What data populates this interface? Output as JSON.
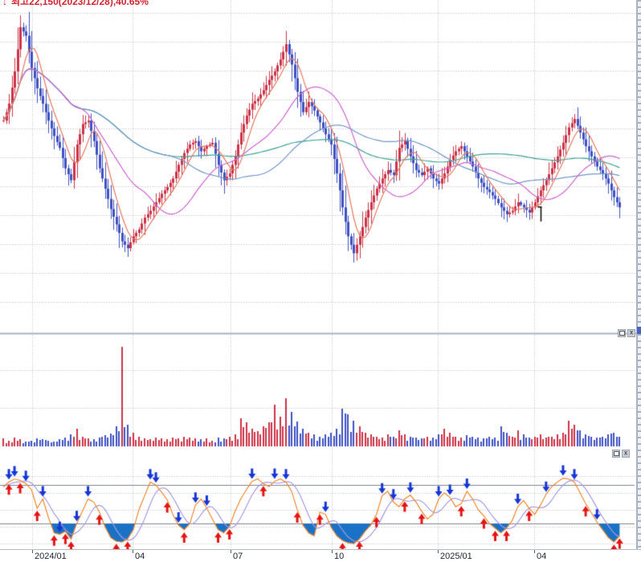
{
  "annotation_high": {
    "arrow_icon": "arrow-down",
    "arrow_glyph": "↓",
    "text": "최고22,150(2023/12/28),40.65%",
    "color": "#d22332"
  },
  "window_controls": {
    "restore_icon": "restore-window-icon",
    "close_icon": "close-icon",
    "close_glyph": "x"
  },
  "x_axis": {
    "labels": [
      "2024/01",
      "04",
      "07",
      "10",
      "2025/01",
      "04"
    ]
  },
  "chart_data": {
    "type": "candlestick",
    "panels": [
      "price-candles-with-moving-averages",
      "volume-bars",
      "oscillator-with-signal-arrows"
    ],
    "title": "최고22,150(2023/12/28),40.65%",
    "x_tick_labels": [
      "2024/01",
      "04",
      "07",
      "10",
      "2025/01",
      "04"
    ],
    "price": {
      "ylim": [
        12800,
        22600
      ],
      "high_marker": {
        "price": 22150,
        "anchor_index": 3,
        "date": "2023/12/28",
        "pct": "40.65%"
      },
      "low_tick_annotation": {
        "anchor_index": 95
      },
      "closes": [
        19050,
        19550,
        20500,
        21800,
        21550,
        20600,
        20000,
        19550,
        19050,
        18600,
        18250,
        17650,
        17300,
        18350,
        18950,
        19050,
        18450,
        17650,
        17050,
        16450,
        16000,
        15500,
        15300,
        15650,
        15850,
        16200,
        16400,
        16650,
        16900,
        17100,
        17350,
        17750,
        18100,
        18350,
        18450,
        18150,
        18300,
        18400,
        17750,
        17300,
        17500,
        18000,
        18700,
        19200,
        19550,
        19700,
        19950,
        20250,
        20500,
        20850,
        21300,
        20700,
        19900,
        19300,
        19600,
        19350,
        19000,
        18650,
        18350,
        17500,
        16500,
        15650,
        15150,
        15650,
        16200,
        16650,
        17050,
        17350,
        17600,
        17450,
        18250,
        18450,
        18000,
        17600,
        17450,
        17650,
        17350,
        17200,
        17500,
        17900,
        18150,
        18300,
        18000,
        17700,
        17350,
        17100,
        16950,
        16750,
        16500,
        16300,
        16400,
        16650,
        16500,
        16350,
        16650,
        17000,
        17300,
        17650,
        18000,
        18400,
        18850,
        19100,
        18700,
        18300,
        18000,
        17700,
        17500,
        17200,
        16800,
        16500
      ]
    },
    "moving_average_windows": {
      "fast": 7,
      "mid": 25,
      "slow": 60,
      "xslow": 120
    },
    "volume": {
      "scale": "relative-0-100",
      "spike_anchor": 21,
      "values": [
        8,
        6,
        9,
        7,
        5,
        6,
        8,
        7,
        6,
        5,
        7,
        9,
        12,
        18,
        10,
        8,
        7,
        9,
        11,
        13,
        20,
        100,
        22,
        14,
        10,
        8,
        7,
        9,
        8,
        7,
        9,
        8,
        10,
        9,
        8,
        7,
        8,
        6,
        9,
        8,
        10,
        12,
        28,
        24,
        18,
        15,
        20,
        24,
        42,
        30,
        48,
        35,
        25,
        18,
        14,
        12,
        10,
        12,
        14,
        18,
        38,
        32,
        26,
        20,
        14,
        12,
        10,
        9,
        12,
        10,
        16,
        12,
        10,
        9,
        8,
        10,
        9,
        12,
        18,
        14,
        10,
        9,
        11,
        10,
        9,
        8,
        10,
        9,
        20,
        14,
        10,
        16,
        12,
        9,
        10,
        12,
        9,
        10,
        12,
        14,
        26,
        22,
        16,
        12,
        10,
        9,
        10,
        12,
        14,
        10
      ]
    },
    "oscillator": {
      "range": [
        0,
        100
      ],
      "upper_band": 80,
      "lower_band": 30,
      "fast": [
        78,
        84,
        88,
        86,
        82,
        74,
        50,
        62,
        38,
        18,
        16,
        20,
        10,
        30,
        46,
        62,
        58,
        45,
        26,
        12,
        7,
        6,
        10,
        22,
        48,
        66,
        84,
        80,
        71,
        61,
        42,
        28,
        22,
        30,
        54,
        62,
        50,
        36,
        22,
        18,
        26,
        46,
        62,
        74,
        85,
        88,
        82,
        78,
        85,
        88,
        84,
        72,
        48,
        28,
        18,
        14,
        45,
        42,
        25,
        14,
        8,
        5,
        4,
        10,
        20,
        28,
        42,
        66,
        72,
        58,
        52,
        62,
        67,
        58,
        46,
        36,
        42,
        62,
        70,
        64,
        52,
        56,
        72,
        62,
        48,
        40,
        30,
        24,
        18,
        24,
        34,
        52,
        60,
        50,
        42,
        54,
        68,
        78,
        84,
        89,
        88,
        84,
        70,
        56,
        44,
        32,
        22,
        12,
        6,
        14
      ],
      "signals": [
        {
          "i": 1,
          "d": "d"
        },
        {
          "i": 1,
          "d": "u"
        },
        {
          "i": 2,
          "d": "d"
        },
        {
          "i": 3,
          "d": "u"
        },
        {
          "i": 4,
          "d": "d"
        },
        {
          "i": 6,
          "d": "u"
        },
        {
          "i": 7,
          "d": "d"
        },
        {
          "i": 9,
          "d": "u"
        },
        {
          "i": 10,
          "d": "d"
        },
        {
          "i": 11,
          "d": "u"
        },
        {
          "i": 12,
          "d": "u"
        },
        {
          "i": 13,
          "d": "d"
        },
        {
          "i": 15,
          "d": "d"
        },
        {
          "i": 17,
          "d": "u"
        },
        {
          "i": 20,
          "d": "u"
        },
        {
          "i": 22,
          "d": "u"
        },
        {
          "i": 26,
          "d": "d"
        },
        {
          "i": 27,
          "d": "d"
        },
        {
          "i": 29,
          "d": "u"
        },
        {
          "i": 31,
          "d": "d"
        },
        {
          "i": 32,
          "d": "u"
        },
        {
          "i": 34,
          "d": "d"
        },
        {
          "i": 36,
          "d": "d"
        },
        {
          "i": 38,
          "d": "u"
        },
        {
          "i": 40,
          "d": "u"
        },
        {
          "i": 44,
          "d": "d"
        },
        {
          "i": 46,
          "d": "u"
        },
        {
          "i": 48,
          "d": "d"
        },
        {
          "i": 50,
          "d": "d"
        },
        {
          "i": 52,
          "d": "u"
        },
        {
          "i": 56,
          "d": "u"
        },
        {
          "i": 57,
          "d": "d"
        },
        {
          "i": 60,
          "d": "u"
        },
        {
          "i": 63,
          "d": "u"
        },
        {
          "i": 66,
          "d": "u"
        },
        {
          "i": 67,
          "d": "d"
        },
        {
          "i": 69,
          "d": "d"
        },
        {
          "i": 71,
          "d": "u"
        },
        {
          "i": 72,
          "d": "d"
        },
        {
          "i": 74,
          "d": "u"
        },
        {
          "i": 77,
          "d": "d"
        },
        {
          "i": 79,
          "d": "d"
        },
        {
          "i": 81,
          "d": "u"
        },
        {
          "i": 82,
          "d": "d"
        },
        {
          "i": 85,
          "d": "u"
        },
        {
          "i": 87,
          "d": "u"
        },
        {
          "i": 89,
          "d": "u"
        },
        {
          "i": 91,
          "d": "d"
        },
        {
          "i": 93,
          "d": "u"
        },
        {
          "i": 96,
          "d": "d"
        },
        {
          "i": 99,
          "d": "d"
        },
        {
          "i": 101,
          "d": "d"
        },
        {
          "i": 103,
          "d": "u"
        },
        {
          "i": 105,
          "d": "d"
        },
        {
          "i": 108,
          "d": "u"
        },
        {
          "i": 109,
          "d": "u"
        }
      ]
    },
    "colors": {
      "up": "#cc3348",
      "down": "#3f51c2",
      "ma_fast": "#e57a62",
      "ma_mid": "#cc66cc",
      "ma_slow": "#7296c8",
      "ma_xslow": "#3da393",
      "osc_fast": "#ef8830",
      "osc_slow": "#a79ae0",
      "osc_fill": "#1a72c6",
      "band": "#7d858d",
      "arrow_up": "#e51414",
      "arrow_down": "#1535d6",
      "grid": "#b8b8b8",
      "divider": "#a9b2bd",
      "annotation": "#d22332",
      "low_tick": "#000000"
    }
  }
}
